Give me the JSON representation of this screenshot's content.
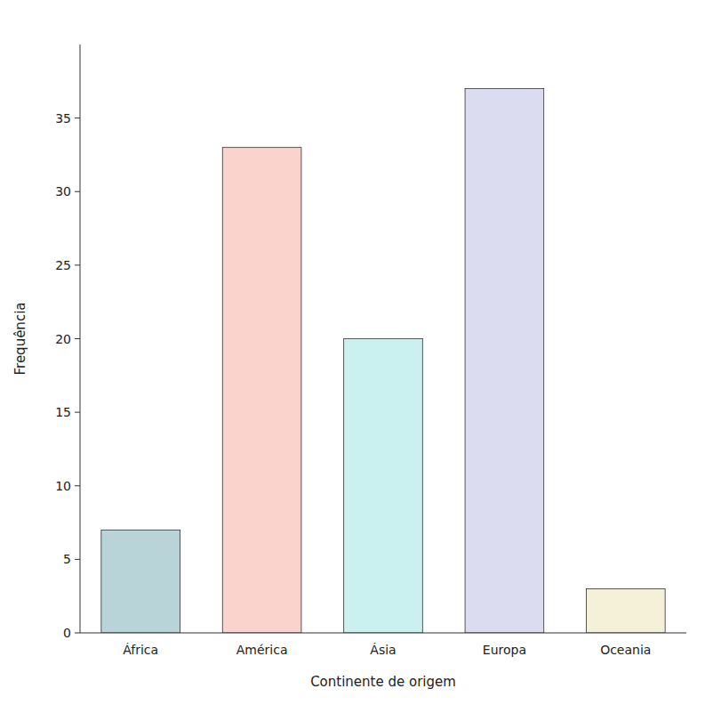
{
  "chart_data": {
    "type": "bar",
    "categories": [
      "África",
      "América",
      "Ásia",
      "Europa",
      "Oceania"
    ],
    "values": [
      7,
      33,
      20,
      37,
      3
    ],
    "colors": [
      "#b8d4d8",
      "#fad4cc",
      "#caf0f0",
      "#dcdcf0",
      "#f5f0d8"
    ],
    "xlabel": "Continente de origem",
    "ylabel": "Frequência",
    "ylim": [
      0,
      40
    ],
    "yticks": [
      0,
      5,
      10,
      15,
      20,
      25,
      30,
      35
    ],
    "grid": false
  }
}
